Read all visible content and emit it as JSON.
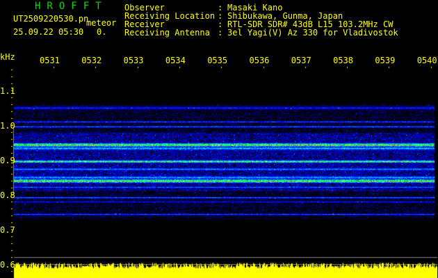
{
  "header": {
    "app_title": "HROFFT",
    "filename": "UT2509220530.pn",
    "mode": "meteor",
    "datetime": "25.09.22 05:30",
    "count": "0.",
    "info": [
      {
        "label": "Observer",
        "value": "Masaki Kano"
      },
      {
        "label": "Receiving Location",
        "value": "Shibukawa, Gunma, Japan"
      },
      {
        "label": "Receiver",
        "value": "RTL-SDR SDR# 43dB L15 103.2MHz CW"
      },
      {
        "label": "Receiving Antenna",
        "value": "3el Yagi(V) Az 330 for Vladivostok"
      }
    ]
  },
  "axes": {
    "y_unit": "kHz",
    "y_ticks": [
      "1.1",
      "1.0",
      "0.9",
      "0.8",
      "0.7",
      "0.6"
    ],
    "x_ticks": [
      "0531",
      "0532",
      "0533",
      "0534",
      "0535",
      "0536",
      "0537",
      "0538",
      "0539",
      "0540"
    ]
  },
  "colors": {
    "text": "#ffff00",
    "title": "#00e000",
    "background": "#000000"
  }
}
